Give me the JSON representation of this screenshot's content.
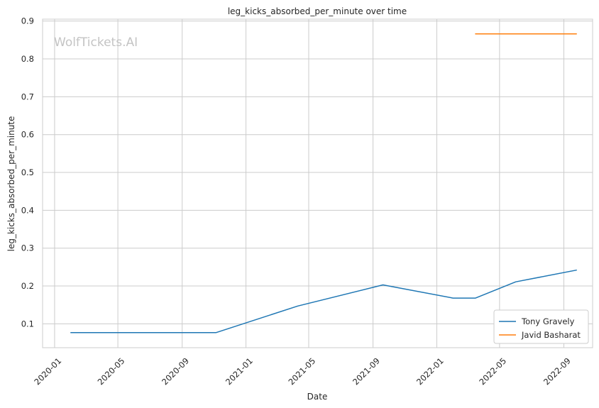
{
  "chart_data": {
    "type": "line",
    "title": "leg_kicks_absorbed_per_minute over time",
    "xlabel": "Date",
    "ylabel": "leg_kicks_absorbed_per_minute",
    "watermark": "WolfTickets.AI",
    "x_axis_type": "date",
    "xlim": [
      "2019-12-09",
      "2022-10-26"
    ],
    "ylim": [
      0.037,
      0.905
    ],
    "x_ticks": [
      "2020-01",
      "2020-05",
      "2020-09",
      "2021-01",
      "2021-05",
      "2021-09",
      "2022-01",
      "2022-05",
      "2022-09"
    ],
    "y_ticks": [
      0.1,
      0.2,
      0.3,
      0.4,
      0.5,
      0.6,
      0.7,
      0.8,
      0.9
    ],
    "grid": true,
    "legend_position": "bottom-right",
    "series": [
      {
        "name": "Tony Gravely",
        "color": "#1f77b4",
        "points": [
          {
            "x": "2020-02-01",
            "y": 0.077
          },
          {
            "x": "2020-11-05",
            "y": 0.077
          },
          {
            "x": "2021-04-10",
            "y": 0.147
          },
          {
            "x": "2021-09-20",
            "y": 0.203
          },
          {
            "x": "2022-02-01",
            "y": 0.168
          },
          {
            "x": "2022-03-16",
            "y": 0.168
          },
          {
            "x": "2022-06-01",
            "y": 0.211
          },
          {
            "x": "2022-09-25",
            "y": 0.242
          }
        ]
      },
      {
        "name": "Javid Basharat",
        "color": "#ff7f0e",
        "points": [
          {
            "x": "2022-03-16",
            "y": 0.866
          },
          {
            "x": "2022-09-25",
            "y": 0.866
          }
        ]
      }
    ]
  }
}
